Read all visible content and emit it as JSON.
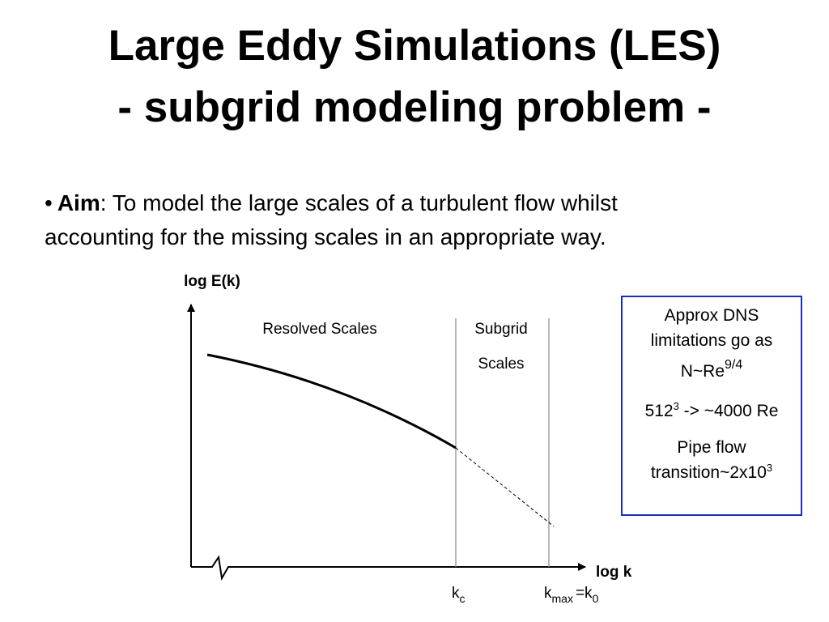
{
  "title": {
    "line1": "Large Eddy Simulations (LES)",
    "line2": "- subgrid modeling problem -"
  },
  "bullet": {
    "marker": "•",
    "label": "Aim",
    "lines": [
      ": To model the large scales of a turbulent flow whilst",
      "accounting for the missing scales in an appropriate way."
    ]
  },
  "diagram": {
    "y_axis_label": "log E(k)",
    "x_axis_label": "log k",
    "resolved_label": "Resolved Scales",
    "subgrid_label": [
      "Subgrid",
      "Scales"
    ],
    "kc": {
      "base": "k",
      "sub": "c"
    },
    "kmax": {
      "base": "k",
      "sub": "max",
      "equals": "=k",
      "equals_sub": "0"
    }
  },
  "note": {
    "line1": "Approx DNS",
    "line2": "limitations go as",
    "scaling": {
      "base": "N~Re",
      "sup": "9/4"
    },
    "resolution": {
      "base": "512",
      "sup": "3",
      "rest": " -> ~4000 Re"
    },
    "pipe": {
      "line1": "Pipe flow",
      "base": "transition~2x10",
      "sup": "3"
    }
  }
}
